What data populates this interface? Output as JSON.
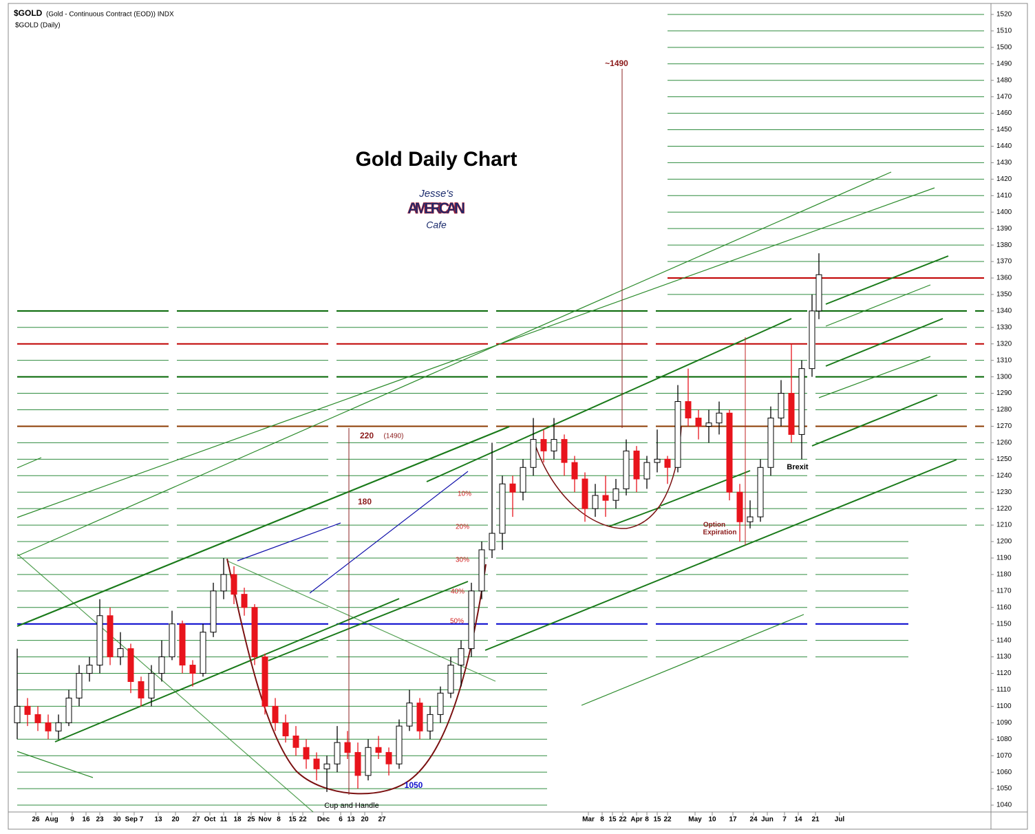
{
  "header": {
    "symbol": "$GOLD",
    "description": "(Gold - Continuous Contract (EOD)) INDX",
    "period": "$GOLD (Daily)"
  },
  "logo": {
    "line1": "Jesse's",
    "line2": "AMERICAIN",
    "line3": "Cafe"
  },
  "chart_data": {
    "type": "candlestick",
    "title": "Gold Daily Chart",
    "annotations": {
      "target": "~1490",
      "move": "220",
      "move_target": "(1490)",
      "move2": "180",
      "retrace": [
        "10%",
        "20%",
        "30%",
        "40%",
        "50%"
      ],
      "low": "1050",
      "pattern": "Cup and Handle",
      "event": "Brexit",
      "option": [
        "Option",
        "Expiration"
      ]
    },
    "up_color": "#ffffff",
    "down_color": "#e8141c",
    "xlim": [
      0,
      283
    ],
    "xticks": [
      {
        "value": 5.4,
        "label": "26"
      },
      {
        "value": 10,
        "label": "Aug"
      },
      {
        "value": 16,
        "label": "9"
      },
      {
        "value": 20,
        "label": "16"
      },
      {
        "value": 24,
        "label": "23"
      },
      {
        "value": 29,
        "label": "30"
      },
      {
        "value": 34,
        "label": "Sep 7"
      },
      {
        "value": 41,
        "label": "13"
      },
      {
        "value": 46,
        "label": "20"
      },
      {
        "value": 52,
        "label": "27"
      },
      {
        "value": 56,
        "label": "Oct"
      },
      {
        "value": 60,
        "label": "11"
      },
      {
        "value": 64,
        "label": "18"
      },
      {
        "value": 68,
        "label": "25"
      },
      {
        "value": 72,
        "label": "Nov"
      },
      {
        "value": 76,
        "label": "8"
      },
      {
        "value": 80,
        "label": "15"
      },
      {
        "value": 83,
        "label": "22"
      },
      {
        "value": 89,
        "label": "Dec"
      },
      {
        "value": 94,
        "label": "6"
      },
      {
        "value": 97,
        "label": "13"
      },
      {
        "value": 101,
        "label": "20"
      },
      {
        "value": 106,
        "label": "27"
      },
      {
        "value": 166,
        "label": "Mar"
      },
      {
        "value": 170,
        "label": "8"
      },
      {
        "value": 173,
        "label": "15"
      },
      {
        "value": 176,
        "label": "22"
      },
      {
        "value": 180,
        "label": "Apr"
      },
      {
        "value": 183,
        "label": "8"
      },
      {
        "value": 186,
        "label": "15"
      },
      {
        "value": 189,
        "label": "22"
      },
      {
        "value": 197,
        "label": "May"
      },
      {
        "value": 202,
        "label": "10"
      },
      {
        "value": 208,
        "label": "17"
      },
      {
        "value": 214,
        "label": "24"
      },
      {
        "value": 218,
        "label": "Jun"
      },
      {
        "value": 223,
        "label": "7"
      },
      {
        "value": 227,
        "label": "14"
      },
      {
        "value": 232,
        "label": "21"
      },
      {
        "value": 239,
        "label": "Jul"
      }
    ],
    "ylim": [
      1035,
      1525
    ],
    "yticks": [
      1040,
      1050,
      1060,
      1070,
      1080,
      1090,
      1100,
      1110,
      1120,
      1130,
      1140,
      1150,
      1160,
      1170,
      1180,
      1190,
      1200,
      1210,
      1220,
      1230,
      1240,
      1250,
      1260,
      1270,
      1280,
      1290,
      1300,
      1310,
      1320,
      1330,
      1340,
      1350,
      1360,
      1370,
      1380,
      1390,
      1400,
      1410,
      1420,
      1430,
      1440,
      1450,
      1460,
      1470,
      1480,
      1490,
      1500,
      1510,
      1520
    ],
    "highlight_levels": [
      {
        "value": 1360,
        "color": "#c00000"
      },
      {
        "value": 1320,
        "color": "#c00000"
      },
      {
        "value": 1270,
        "color": "#8b3a00"
      },
      {
        "value": 1340,
        "color": "#006400"
      },
      {
        "value": 1300,
        "color": "#006400"
      },
      {
        "value": 1150,
        "color": "#0000cc"
      }
    ],
    "x": [
      0,
      3,
      6,
      9,
      12,
      15,
      18,
      21,
      24,
      27,
      30,
      33,
      36,
      39,
      42,
      45,
      48,
      51,
      54,
      57,
      60,
      63,
      66,
      69,
      72,
      75,
      78,
      81,
      84,
      87,
      90,
      93,
      96,
      99,
      102,
      105,
      108,
      111,
      114,
      117,
      120,
      123,
      126,
      129,
      132,
      135,
      138,
      141,
      144,
      147,
      150,
      153,
      156,
      159,
      162,
      165,
      168,
      171,
      174,
      177,
      180,
      183,
      186,
      189,
      192,
      195,
      198,
      201,
      204,
      207,
      210,
      213,
      216,
      219,
      222,
      225,
      228,
      231,
      233
    ],
    "open": [
      1090,
      1100,
      1095,
      1090,
      1085,
      1090,
      1105,
      1120,
      1125,
      1155,
      1130,
      1135,
      1115,
      1105,
      1120,
      1130,
      1150,
      1125,
      1120,
      1145,
      1170,
      1180,
      1168,
      1160,
      1130,
      1100,
      1090,
      1082,
      1075,
      1068,
      1062,
      1065,
      1078,
      1072,
      1058,
      1075,
      1072,
      1065,
      1088,
      1102,
      1085,
      1095,
      1108,
      1125,
      1135,
      1170,
      1195,
      1205,
      1235,
      1230,
      1245,
      1262,
      1255,
      1262,
      1248,
      1238,
      1220,
      1228,
      1225,
      1232,
      1255,
      1238,
      1248,
      1250,
      1245,
      1285,
      1275,
      1270,
      1272,
      1278,
      1230,
      1212,
      1215,
      1245,
      1275,
      1290,
      1265,
      1305,
      1340
    ],
    "high": [
      1135,
      1105,
      1100,
      1095,
      1095,
      1110,
      1125,
      1130,
      1165,
      1160,
      1145,
      1138,
      1118,
      1125,
      1140,
      1158,
      1152,
      1128,
      1150,
      1175,
      1190,
      1185,
      1172,
      1162,
      1132,
      1105,
      1095,
      1088,
      1080,
      1072,
      1070,
      1088,
      1085,
      1078,
      1080,
      1082,
      1075,
      1092,
      1110,
      1105,
      1100,
      1112,
      1130,
      1140,
      1175,
      1200,
      1260,
      1240,
      1240,
      1250,
      1275,
      1268,
      1275,
      1265,
      1252,
      1242,
      1235,
      1240,
      1238,
      1262,
      1258,
      1252,
      1268,
      1252,
      1295,
      1305,
      1280,
      1280,
      1285,
      1280,
      1235,
      1225,
      1250,
      1282,
      1298,
      1320,
      1310,
      1350,
      1375
    ],
    "low": [
      1080,
      1088,
      1085,
      1080,
      1080,
      1088,
      1100,
      1115,
      1120,
      1125,
      1125,
      1108,
      1100,
      1100,
      1115,
      1128,
      1120,
      1112,
      1118,
      1142,
      1165,
      1162,
      1155,
      1125,
      1095,
      1085,
      1078,
      1070,
      1062,
      1055,
      1048,
      1060,
      1068,
      1050,
      1055,
      1068,
      1058,
      1062,
      1085,
      1080,
      1080,
      1090,
      1105,
      1112,
      1130,
      1165,
      1190,
      1195,
      1215,
      1225,
      1240,
      1248,
      1250,
      1240,
      1230,
      1212,
      1215,
      1215,
      1220,
      1228,
      1230,
      1232,
      1242,
      1235,
      1242,
      1270,
      1262,
      1260,
      1265,
      1225,
      1200,
      1208,
      1212,
      1240,
      1270,
      1260,
      1250,
      1300,
      1335
    ],
    "close": [
      1100,
      1095,
      1090,
      1085,
      1090,
      1105,
      1120,
      1125,
      1155,
      1130,
      1135,
      1115,
      1105,
      1120,
      1130,
      1150,
      1125,
      1120,
      1145,
      1170,
      1180,
      1168,
      1160,
      1130,
      1100,
      1090,
      1082,
      1075,
      1068,
      1062,
      1065,
      1078,
      1072,
      1058,
      1075,
      1072,
      1065,
      1088,
      1102,
      1085,
      1095,
      1108,
      1125,
      1135,
      1170,
      1195,
      1205,
      1235,
      1230,
      1245,
      1262,
      1255,
      1262,
      1248,
      1238,
      1220,
      1228,
      1225,
      1232,
      1255,
      1238,
      1248,
      1250,
      1245,
      1285,
      1275,
      1270,
      1272,
      1278,
      1230,
      1212,
      1215,
      1245,
      1275,
      1290,
      1265,
      1305,
      1340,
      1362
    ]
  }
}
